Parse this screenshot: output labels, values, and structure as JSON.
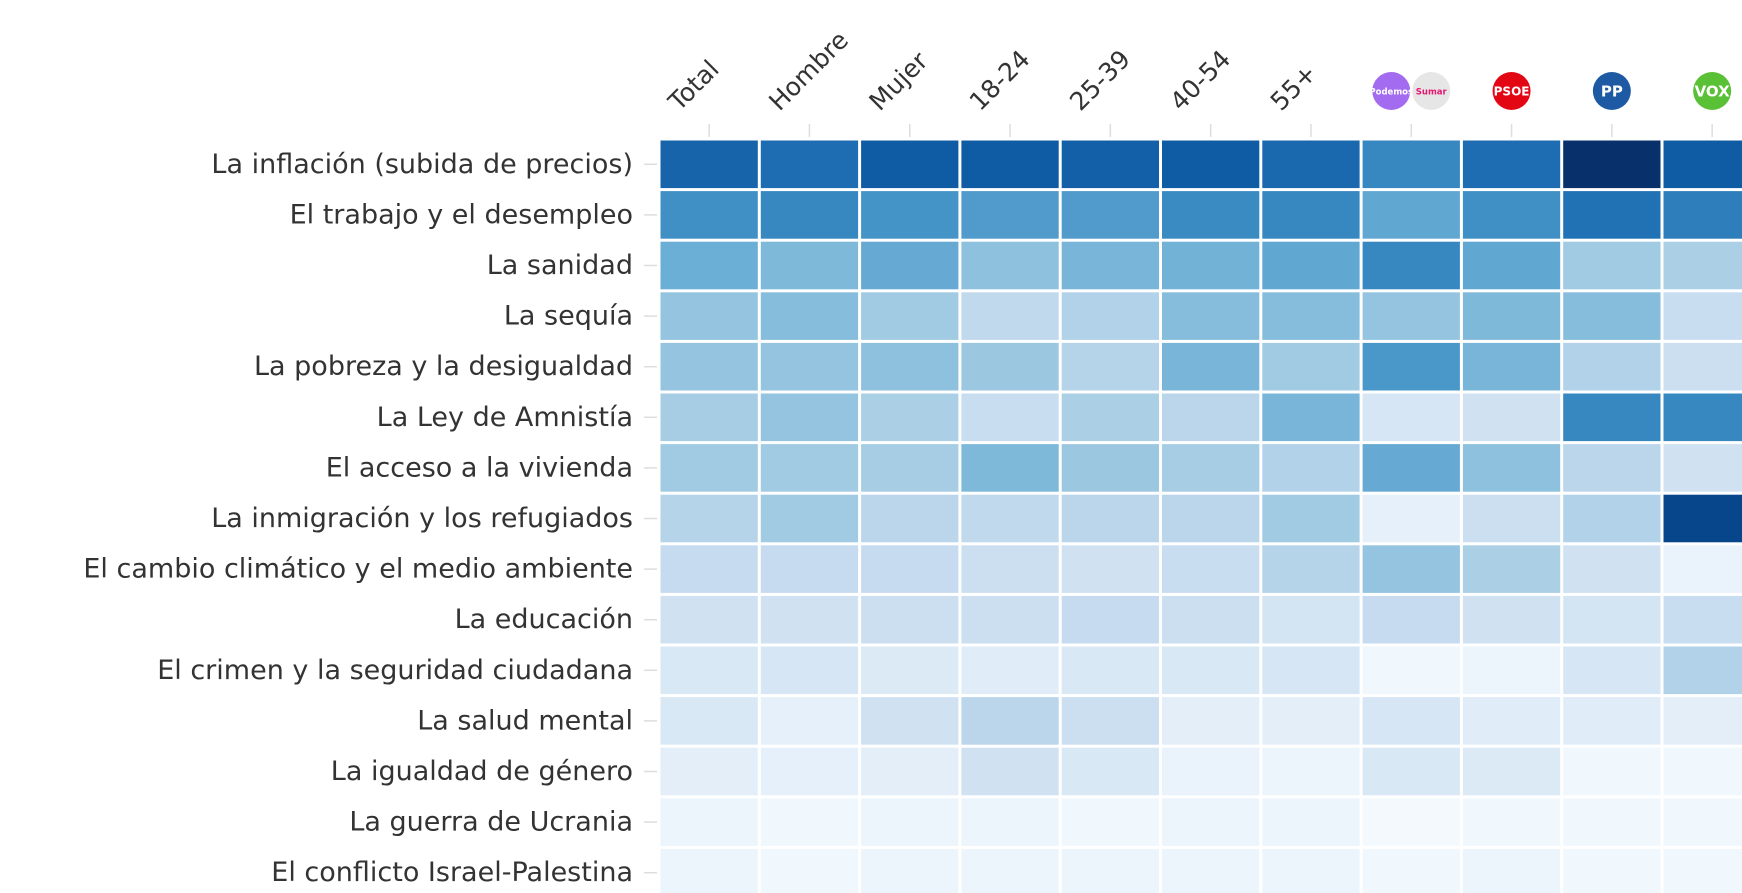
{
  "chart_data": {
    "type": "heatmap",
    "rows": [
      "La inflación (subida de precios)",
      "El trabajo y el desempleo",
      "La sanidad",
      "La sequía",
      "La pobreza y la desigualdad",
      "La Ley de Amnistía",
      "El acceso a la vivienda",
      "La inmigración y los refugiados",
      "El cambio climático y el medio ambiente",
      "La educación",
      "El crimen y la seguridad ciudadana",
      "La salud mental",
      "La igualdad de género",
      "La guerra de Ucrania",
      "El conflicto Israel-Palestina"
    ],
    "columns": [
      {
        "label": "Total"
      },
      {
        "label": "Hombre"
      },
      {
        "label": "Mujer"
      },
      {
        "label": "18-24"
      },
      {
        "label": "25-39"
      },
      {
        "label": "40-54"
      },
      {
        "label": "55+"
      },
      {
        "logos": [
          {
            "text": "Podemos",
            "color": "#a36cf0",
            "text_color": "#ffffff"
          },
          {
            "text": "Sumar",
            "color": "#e6e6e6",
            "text_color": "#e5186f"
          }
        ]
      },
      {
        "logos": [
          {
            "text": "PSOE",
            "color": "#e30613",
            "text_color": "#ffffff"
          }
        ]
      },
      {
        "logos": [
          {
            "text": "PP",
            "color": "#1d5aa3",
            "text_color": "#ffffff"
          }
        ]
      },
      {
        "logos": [
          {
            "text": "VOX",
            "color": "#5ac035",
            "text_color": "#ffffff"
          }
        ]
      }
    ],
    "values": [
      [
        48,
        46,
        50,
        50,
        49,
        50,
        47,
        40,
        46,
        60,
        50
      ],
      [
        38,
        40,
        37,
        35,
        35,
        39,
        40,
        32,
        38,
        45,
        42
      ],
      [
        30,
        27,
        31,
        25,
        28,
        29,
        32,
        40,
        32,
        22,
        20
      ],
      [
        24,
        26,
        22,
        16,
        19,
        26,
        26,
        24,
        27,
        26,
        14
      ],
      [
        24,
        24,
        25,
        23,
        18,
        28,
        22,
        36,
        28,
        19,
        13
      ],
      [
        21,
        24,
        20,
        14,
        20,
        17,
        28,
        10,
        12,
        40,
        40
      ],
      [
        22,
        22,
        21,
        27,
        23,
        21,
        19,
        31,
        25,
        17,
        12
      ],
      [
        18,
        22,
        17,
        16,
        17,
        17,
        22,
        5,
        13,
        19,
        55
      ],
      [
        15,
        15,
        15,
        13,
        12,
        14,
        18,
        24,
        20,
        12,
        4
      ],
      [
        12,
        12,
        13,
        13,
        15,
        13,
        11,
        15,
        12,
        11,
        14
      ],
      [
        9,
        10,
        8,
        7,
        9,
        9,
        10,
        2,
        3,
        10,
        19
      ],
      [
        9,
        5,
        12,
        17,
        13,
        6,
        6,
        10,
        7,
        7,
        6
      ],
      [
        6,
        5,
        6,
        12,
        9,
        4,
        3,
        9,
        8,
        2,
        2
      ],
      [
        3,
        2,
        3,
        3,
        2,
        3,
        3,
        1,
        2,
        2,
        2
      ],
      [
        3,
        2,
        3,
        3,
        3,
        3,
        3,
        2,
        3,
        2,
        2
      ]
    ],
    "colors": [
      "#f7fbff",
      "#deebf7",
      "#c6dbef",
      "#9ecae1",
      "#6baed6",
      "#4292c6",
      "#2171b5",
      "#08519c",
      "#08306b"
    ]
  }
}
